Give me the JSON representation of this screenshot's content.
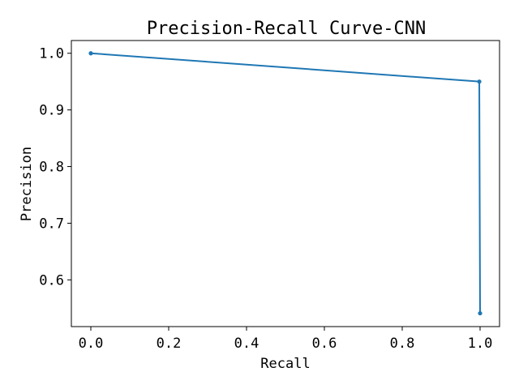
{
  "chart_data": {
    "type": "line",
    "title": "Precision-Recall Curve-CNN",
    "xlabel": "Recall",
    "ylabel": "Precision",
    "xlim": [
      -0.05,
      1.05
    ],
    "ylim": [
      0.5175,
      1.0225
    ],
    "x_ticks": [
      0.0,
      0.2,
      0.4,
      0.6,
      0.8,
      1.0
    ],
    "x_tick_labels": [
      "0.0",
      "0.2",
      "0.4",
      "0.6",
      "0.8",
      "1.0"
    ],
    "y_ticks": [
      0.6,
      0.7,
      0.8,
      0.9,
      1.0
    ],
    "y_tick_labels": [
      "0.6",
      "0.7",
      "0.8",
      "0.9",
      "1.0"
    ],
    "grid": false,
    "series": [
      {
        "x": [
          0.0,
          0.998,
          1.0
        ],
        "y": [
          1.0,
          0.95,
          0.541
        ],
        "color": "#1f77b4",
        "marker": "circle"
      }
    ]
  }
}
